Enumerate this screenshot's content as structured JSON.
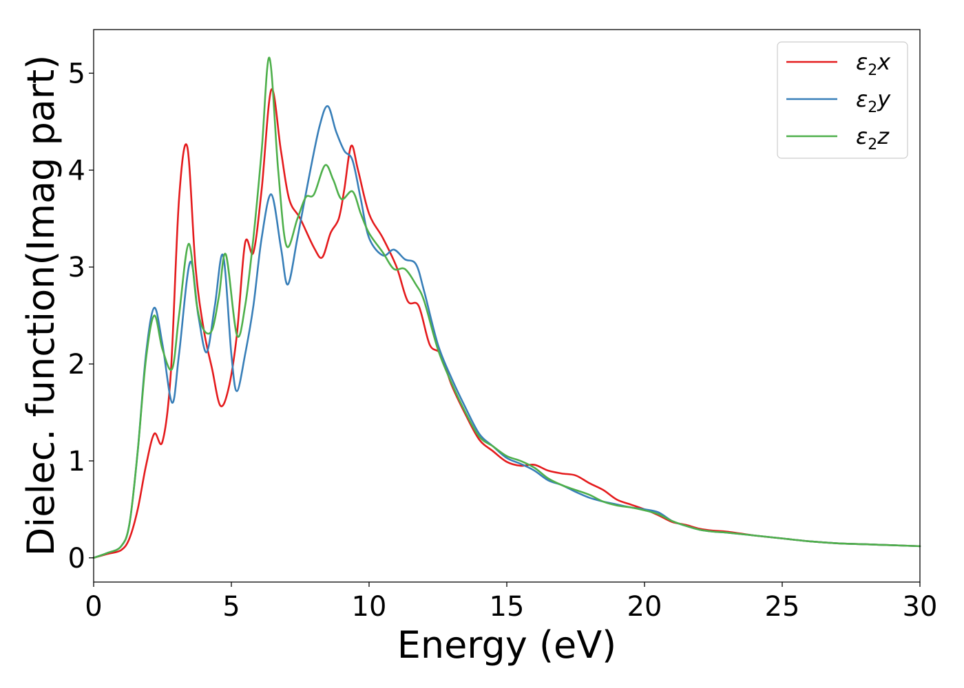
{
  "chart_data": {
    "type": "line",
    "xlabel": "Energy (eV)",
    "ylabel": "Dielec. function(Imag part)",
    "xlim": [
      0,
      30
    ],
    "ylim": [
      -0.25,
      5.45
    ],
    "xticks": [
      0,
      5,
      10,
      15,
      20,
      25,
      30
    ],
    "yticks": [
      0,
      1,
      2,
      3,
      4,
      5
    ],
    "grid": false,
    "legend_position": "top-right",
    "series": [
      {
        "name": "ε2x",
        "legend": {
          "symbol": "ε",
          "sub": "2",
          "suffix": "x"
        },
        "color": "#e41a1c",
        "x": [
          0,
          0.5,
          1.0,
          1.3,
          1.6,
          1.9,
          2.2,
          2.5,
          2.8,
          3.1,
          3.4,
          3.7,
          4.0,
          4.3,
          4.6,
          4.9,
          5.2,
          5.5,
          5.8,
          6.1,
          6.45,
          6.8,
          7.1,
          7.5,
          8.0,
          8.3,
          8.6,
          8.9,
          9.1,
          9.35,
          9.6,
          10.0,
          10.5,
          11.0,
          11.4,
          11.8,
          12.2,
          12.6,
          13.0,
          13.5,
          14.0,
          14.5,
          15.0,
          15.5,
          16.0,
          16.5,
          17.0,
          17.5,
          18.0,
          18.5,
          19.0,
          19.5,
          20.0,
          20.5,
          21.0,
          21.5,
          22.0,
          22.5,
          23.0,
          24.0,
          25.0,
          26.0,
          27.0,
          28.0,
          29.0,
          30.0
        ],
        "y": [
          0,
          0.04,
          0.08,
          0.2,
          0.5,
          0.95,
          1.28,
          1.2,
          1.9,
          3.7,
          4.24,
          3.0,
          2.35,
          1.95,
          1.57,
          1.75,
          2.3,
          3.25,
          3.15,
          3.8,
          4.83,
          4.2,
          3.7,
          3.5,
          3.2,
          3.1,
          3.35,
          3.5,
          3.8,
          4.25,
          4.0,
          3.55,
          3.3,
          3.0,
          2.65,
          2.6,
          2.2,
          2.1,
          1.78,
          1.48,
          1.22,
          1.1,
          0.99,
          0.95,
          0.96,
          0.9,
          0.87,
          0.85,
          0.77,
          0.7,
          0.6,
          0.55,
          0.5,
          0.44,
          0.37,
          0.34,
          0.3,
          0.28,
          0.27,
          0.23,
          0.2,
          0.17,
          0.15,
          0.14,
          0.13,
          0.12
        ]
      },
      {
        "name": "ε2y",
        "legend": {
          "symbol": "ε",
          "sub": "2",
          "suffix": "y"
        },
        "color": "#377eb8",
        "x": [
          0,
          0.5,
          1.0,
          1.3,
          1.6,
          1.9,
          2.2,
          2.5,
          2.85,
          3.1,
          3.5,
          3.8,
          4.1,
          4.4,
          4.7,
          5.0,
          5.2,
          5.5,
          5.8,
          6.1,
          6.45,
          6.8,
          7.05,
          7.4,
          7.8,
          8.2,
          8.5,
          8.8,
          9.1,
          9.4,
          9.7,
          10.0,
          10.5,
          10.9,
          11.3,
          11.7,
          12.0,
          12.5,
          13.0,
          13.5,
          14.0,
          14.5,
          15.0,
          15.5,
          16.0,
          16.5,
          17.0,
          17.5,
          18.0,
          18.5,
          19.0,
          19.5,
          20.0,
          20.5,
          21.0,
          21.5,
          22.0,
          22.5,
          23.0,
          24.0,
          25.0,
          26.0,
          27.0,
          28.0,
          29.0,
          30.0
        ],
        "y": [
          0,
          0.05,
          0.12,
          0.35,
          1.1,
          2.1,
          2.58,
          2.2,
          1.6,
          2.1,
          3.05,
          2.5,
          2.12,
          2.6,
          3.12,
          2.1,
          1.72,
          2.1,
          2.6,
          3.3,
          3.75,
          3.2,
          2.82,
          3.3,
          3.9,
          4.45,
          4.66,
          4.4,
          4.2,
          4.1,
          3.7,
          3.3,
          3.12,
          3.18,
          3.08,
          3.03,
          2.75,
          2.2,
          1.85,
          1.55,
          1.28,
          1.15,
          1.03,
          0.97,
          0.9,
          0.8,
          0.75,
          0.68,
          0.62,
          0.58,
          0.55,
          0.52,
          0.5,
          0.47,
          0.38,
          0.33,
          0.29,
          0.27,
          0.26,
          0.23,
          0.2,
          0.17,
          0.15,
          0.14,
          0.13,
          0.12
        ]
      },
      {
        "name": "ε2z",
        "legend": {
          "symbol": "ε",
          "sub": "2",
          "suffix": "z"
        },
        "color": "#4daf4a",
        "x": [
          0,
          0.5,
          1.0,
          1.3,
          1.6,
          1.9,
          2.2,
          2.5,
          2.85,
          3.1,
          3.45,
          3.75,
          4.0,
          4.3,
          4.55,
          4.8,
          5.2,
          5.5,
          5.8,
          6.1,
          6.38,
          6.7,
          7.0,
          7.4,
          7.7,
          8.0,
          8.4,
          8.7,
          9.0,
          9.4,
          9.7,
          10.0,
          10.5,
          10.9,
          11.3,
          11.7,
          12.0,
          12.5,
          13.0,
          13.5,
          14.0,
          14.5,
          15.0,
          15.5,
          16.0,
          16.5,
          17.0,
          17.5,
          18.0,
          18.5,
          19.0,
          19.5,
          20.0,
          20.5,
          21.0,
          21.5,
          22.0,
          22.5,
          23.0,
          24.0,
          25.0,
          26.0,
          27.0,
          28.0,
          29.0,
          30.0
        ],
        "y": [
          0,
          0.05,
          0.12,
          0.35,
          1.1,
          2.05,
          2.5,
          2.15,
          1.95,
          2.5,
          3.24,
          2.6,
          2.35,
          2.35,
          2.7,
          3.13,
          2.3,
          2.6,
          3.3,
          4.2,
          5.16,
          4.0,
          3.22,
          3.5,
          3.72,
          3.75,
          4.05,
          3.9,
          3.7,
          3.78,
          3.55,
          3.35,
          3.15,
          2.98,
          2.98,
          2.82,
          2.65,
          2.15,
          1.8,
          1.5,
          1.25,
          1.15,
          1.05,
          1.0,
          0.93,
          0.82,
          0.75,
          0.7,
          0.65,
          0.58,
          0.54,
          0.52,
          0.49,
          0.45,
          0.38,
          0.33,
          0.29,
          0.27,
          0.26,
          0.23,
          0.2,
          0.17,
          0.15,
          0.14,
          0.13,
          0.12
        ]
      }
    ]
  }
}
